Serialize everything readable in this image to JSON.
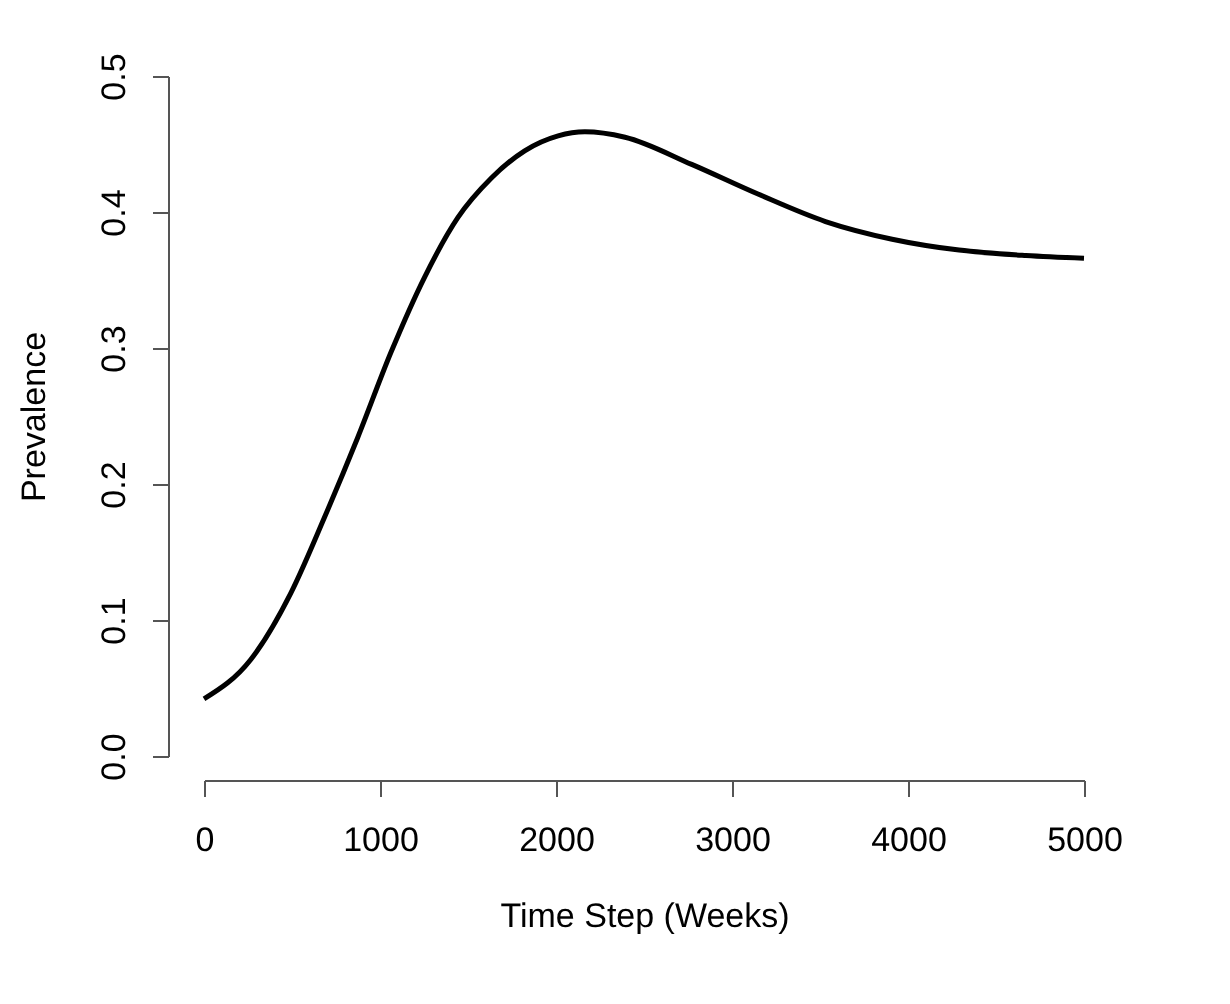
{
  "chart_data": {
    "type": "line",
    "xlabel": "Time Step (Weeks)",
    "ylabel": "Prevalence",
    "x": [
      0,
      266,
      494,
      683,
      873,
      1063,
      1253,
      1443,
      1633,
      1822,
      2012,
      2164,
      2392,
      2771,
      3151,
      3531,
      3910,
      4290,
      4670,
      5000
    ],
    "series": [
      {
        "color": "#000000",
        "values": [
          0.042,
          0.071,
          0.12,
          0.175,
          0.234,
          0.297,
          0.352,
          0.396,
          0.425,
          0.445,
          0.456,
          0.459,
          0.455,
          0.435,
          0.413,
          0.393,
          0.38,
          0.372,
          0.368,
          0.366
        ]
      }
    ],
    "xlim": [
      0,
      5000
    ],
    "ylim": [
      0,
      0.5
    ],
    "xticks": [
      0,
      1000,
      2000,
      3000,
      4000,
      5000
    ],
    "yticks": [
      {
        "value": 0,
        "label": "0.0"
      },
      0.1,
      0.2,
      0.3,
      0.4,
      0.5
    ],
    "grid": false,
    "legend": false,
    "marker": "none",
    "line_style": "solid"
  }
}
